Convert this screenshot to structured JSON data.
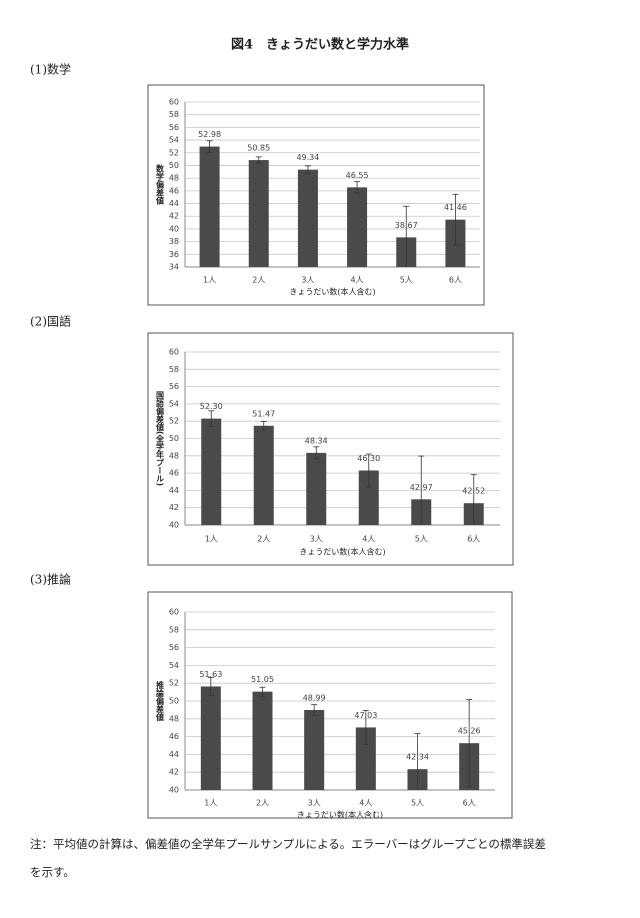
{
  "figure_title": "図4　きょうだい数と学力水準",
  "note": [
    "注：平均値の計算は、偏差値の全学年プールサンプルによる。エラーバーはグループごとの標準誤差",
    "を示す。"
  ],
  "chart_data": [
    {
      "type": "bar",
      "heading": "(1)数学",
      "ylabel": "数学偏差値",
      "xlabel": "きょうだい数(本人含む)",
      "categories": [
        "1人",
        "2人",
        "3人",
        "4人",
        "5人",
        "6人"
      ],
      "values": [
        52.98,
        50.85,
        49.34,
        46.55,
        38.67,
        41.46
      ],
      "value_labels": [
        "52.98",
        "50.85",
        "49.34",
        "46.55",
        "38.67",
        "41.46"
      ],
      "errors": [
        0.9,
        0.5,
        0.6,
        0.9,
        4.9,
        4.0
      ],
      "color": "#4a4a4a",
      "ylim": [
        34,
        60
      ],
      "yticks": [
        34,
        36,
        38,
        40,
        42,
        44,
        46,
        48,
        50,
        52,
        54,
        56,
        58,
        60
      ],
      "grid": true
    },
    {
      "type": "bar",
      "heading": "(2)国語",
      "ylabel": "国語偏差値(全学年プール)",
      "xlabel": "きょうだい数(本人含む)",
      "categories": [
        "1人",
        "2人",
        "3人",
        "4人",
        "5人",
        "6人"
      ],
      "values": [
        52.3,
        51.47,
        48.34,
        46.3,
        42.97,
        42.52
      ],
      "value_labels": [
        "52.30",
        "51.47",
        "48.34",
        "46.30",
        "42.97",
        "42.52"
      ],
      "errors": [
        0.9,
        0.5,
        0.7,
        1.9,
        5.0,
        3.3
      ],
      "color": "#4a4a4a",
      "ylim": [
        40,
        60
      ],
      "yticks": [
        40,
        42,
        44,
        46,
        48,
        50,
        52,
        54,
        56,
        58,
        60
      ],
      "grid": true
    },
    {
      "type": "bar",
      "heading": "(3)推論",
      "ylabel": "推論偏差値",
      "xlabel": "きょうだい数(本人含む)",
      "categories": [
        "1人",
        "2人",
        "3人",
        "4人",
        "5人",
        "6人"
      ],
      "values": [
        51.63,
        51.05,
        48.99,
        47.03,
        42.34,
        45.26
      ],
      "value_labels": [
        "51.63",
        "51.05",
        "48.99",
        "47.03",
        "42.34",
        "45.26"
      ],
      "errors": [
        1.0,
        0.5,
        0.6,
        1.9,
        4.0,
        4.9
      ],
      "color": "#4a4a4a",
      "ylim": [
        40,
        60
      ],
      "yticks": [
        40,
        42,
        44,
        46,
        48,
        50,
        52,
        54,
        56,
        58,
        60
      ],
      "grid": true
    }
  ]
}
